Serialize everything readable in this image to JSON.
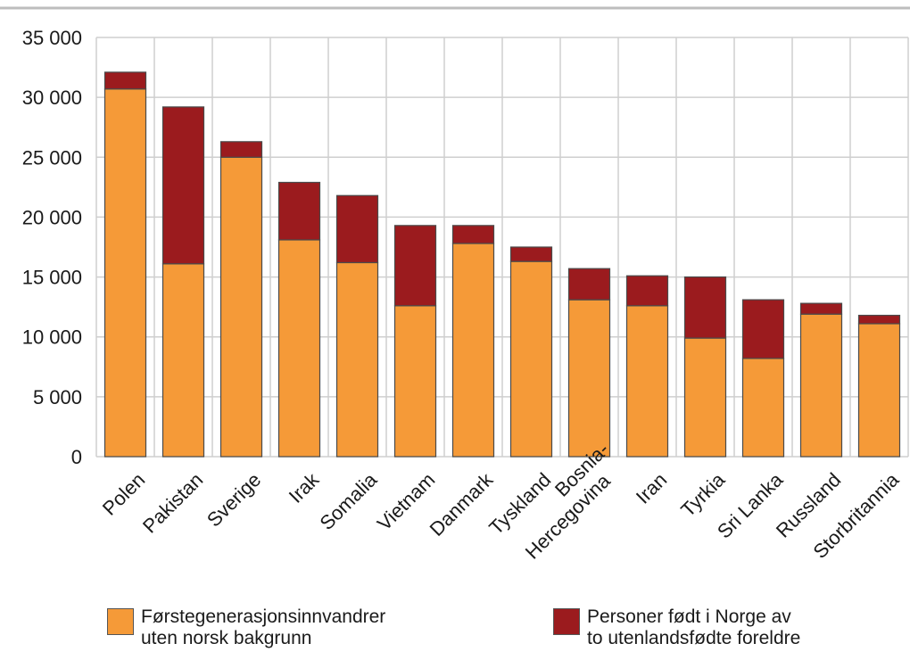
{
  "colors": {
    "series1": "#f59a38",
    "series2": "#9b1b1e",
    "grid": "#cfcfcf",
    "topline": "#bdbdbd",
    "bar_outline": "#4a4a4a"
  },
  "chart_data": {
    "type": "bar",
    "stacked": true,
    "categories": [
      "Polen",
      "Pakistan",
      "Sverige",
      "Irak",
      "Somalia",
      "Vietnam",
      "Danmark",
      "Tyskland",
      "Bosnia-\nHercegovina",
      "Iran",
      "Tyrkia",
      "Sri Lanka",
      "Russland",
      "Storbritannia"
    ],
    "series": [
      {
        "name": "Førstegenerasjonsinnvandrer\nuten norsk bakgrunn",
        "color": "#f59a38",
        "values": [
          30700,
          16100,
          25000,
          18100,
          16200,
          12600,
          17800,
          16300,
          13100,
          12600,
          9900,
          8200,
          11900,
          11100
        ]
      },
      {
        "name": "Personer født i Norge av\nto utenlandsfødte foreldre",
        "color": "#9b1b1e",
        "values": [
          1400,
          13100,
          1300,
          4800,
          5600,
          6700,
          1500,
          1200,
          2600,
          2500,
          5100,
          4900,
          900,
          700
        ]
      }
    ],
    "ylim": [
      0,
      35000
    ],
    "yticks": [
      0,
      5000,
      10000,
      15000,
      20000,
      25000,
      30000,
      35000
    ],
    "ytick_labels": [
      "0",
      "5 000",
      "10 000",
      "15 000",
      "20 000",
      "25 000",
      "30 000",
      "35 000"
    ],
    "grid": true,
    "legend_position": "bottom"
  }
}
